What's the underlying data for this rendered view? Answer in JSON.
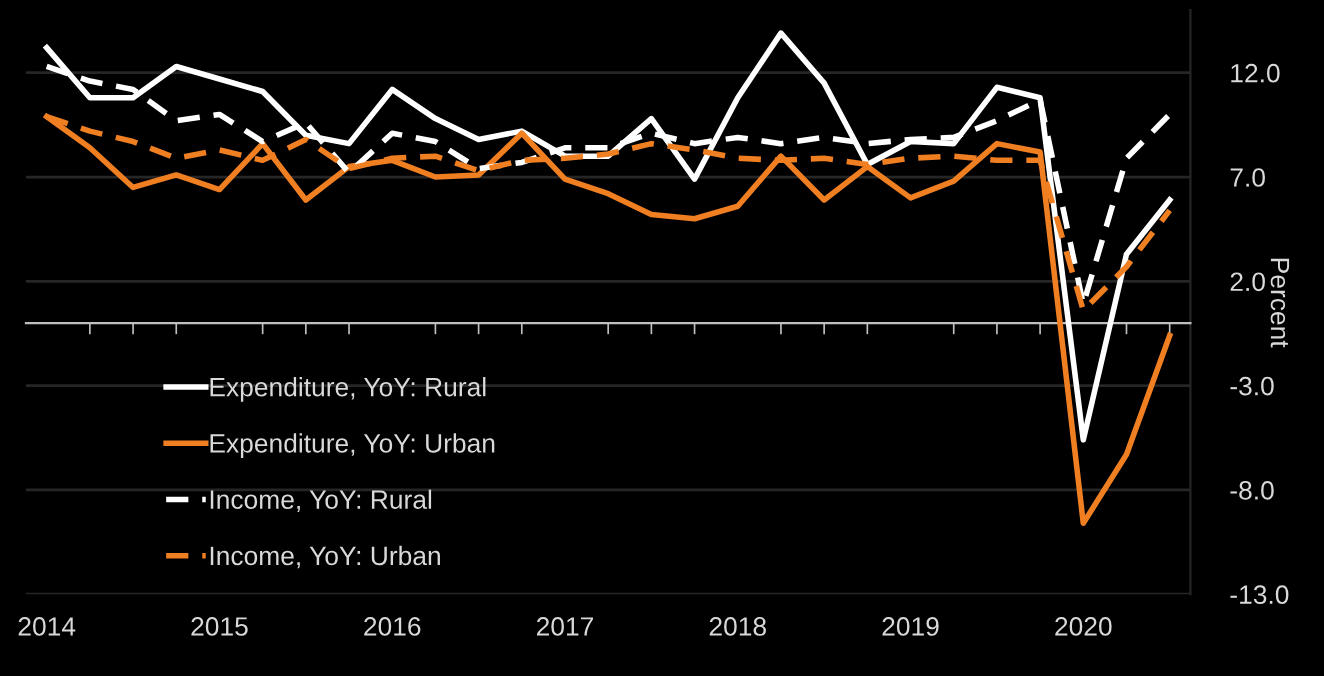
{
  "chart_data": {
    "type": "line",
    "ylabel": "Percent",
    "x": [
      2014,
      2014.25,
      2014.5,
      2014.75,
      2015,
      2015.25,
      2015.5,
      2015.75,
      2016,
      2016.25,
      2016.5,
      2016.75,
      2017,
      2017.25,
      2017.5,
      2017.75,
      2018,
      2018.25,
      2018.5,
      2018.75,
      2019,
      2019.25,
      2019.5,
      2019.75,
      2020,
      2020.25,
      2020.5
    ],
    "series": [
      {
        "name": "Expenditure, YoY: Rural",
        "color": "#ffffff",
        "line_style": "solid",
        "values": [
          13.2,
          10.8,
          10.8,
          12.3,
          11.7,
          11.1,
          9.0,
          8.6,
          11.2,
          9.8,
          8.8,
          9.2,
          8.0,
          8.0,
          9.8,
          6.9,
          10.8,
          13.9,
          11.5,
          7.6,
          8.7,
          8.6,
          11.3,
          10.8,
          -5.6,
          3.3,
          5.9
        ]
      },
      {
        "name": "Expenditure, YoY: Urban",
        "color": "#f07f22",
        "line_style": "solid",
        "values": [
          9.9,
          8.4,
          6.5,
          7.1,
          6.4,
          8.6,
          5.9,
          7.5,
          7.8,
          7.0,
          7.1,
          9.1,
          6.9,
          6.2,
          5.2,
          5.0,
          5.6,
          8.0,
          5.9,
          7.5,
          6.0,
          6.8,
          8.6,
          8.2,
          -9.6,
          -6.3,
          -0.6
        ]
      },
      {
        "name": "Income, YoY: Rural",
        "color": "#ffffff",
        "line_style": "dashed",
        "values": [
          12.3,
          11.6,
          11.2,
          9.7,
          10.0,
          8.7,
          9.6,
          7.2,
          9.1,
          8.7,
          7.4,
          7.7,
          8.4,
          8.4,
          9.1,
          8.6,
          8.9,
          8.6,
          8.9,
          8.6,
          8.8,
          8.9,
          9.7,
          10.7,
          0.9,
          7.9,
          10.0
        ]
      },
      {
        "name": "Income, YoY: Urban",
        "color": "#f07f22",
        "line_style": "dashed",
        "values": [
          9.9,
          9.2,
          8.7,
          7.9,
          8.3,
          7.8,
          8.8,
          7.4,
          7.9,
          8.0,
          7.3,
          7.8,
          7.9,
          8.1,
          8.6,
          8.3,
          7.9,
          7.8,
          7.9,
          7.6,
          7.9,
          8.0,
          7.8,
          7.8,
          0.6,
          2.7,
          5.4
        ]
      }
    ],
    "xlim": [
      2013.88,
      2020.62
    ],
    "xticks": [
      2014,
      2015,
      2016,
      2017,
      2018,
      2019,
      2020
    ],
    "ylim": [
      -13,
      15
    ],
    "yticks": [
      {
        "value": 12,
        "label": "12.0"
      },
      {
        "value": 7,
        "label": "7.0"
      },
      {
        "value": 2,
        "label": "2.0"
      },
      {
        "value": -3,
        "label": "-3.0"
      },
      {
        "value": -8,
        "label": "-8.0"
      },
      {
        "value": -13,
        "label": "-13.0"
      }
    ],
    "grid": "y",
    "legend": "bottom left",
    "marker": "none"
  }
}
